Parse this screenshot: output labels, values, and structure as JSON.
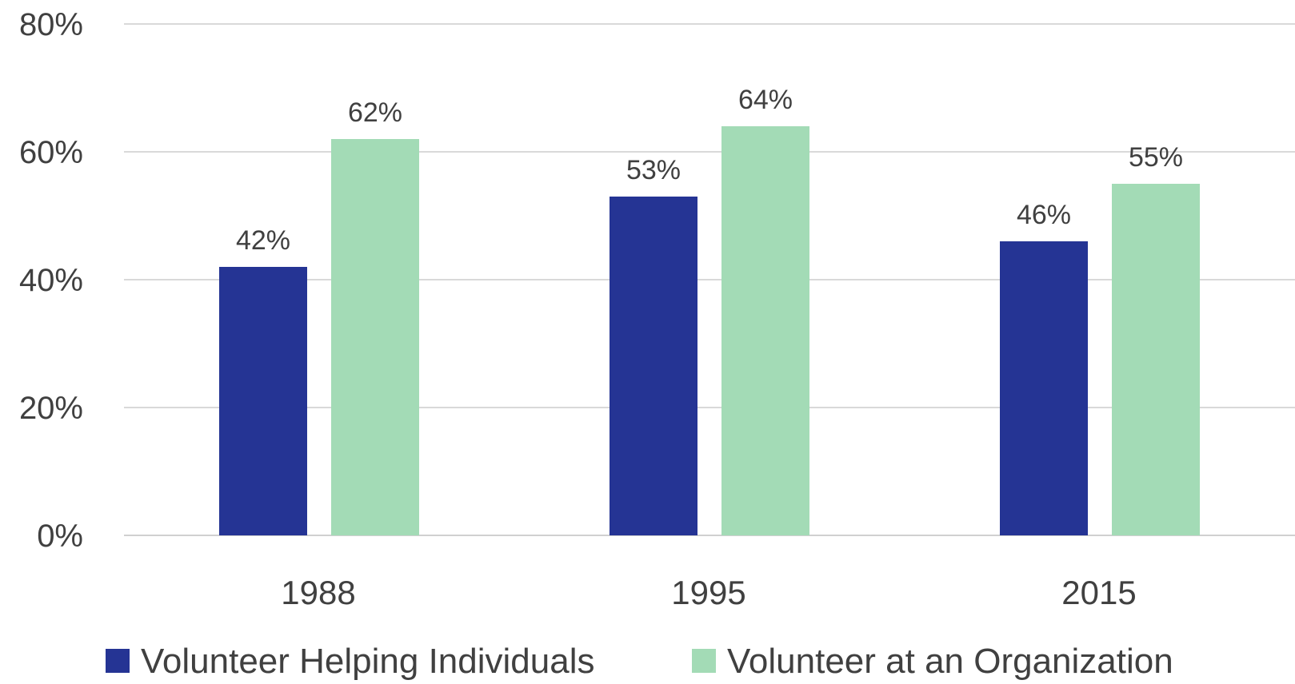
{
  "chart_data": {
    "type": "bar",
    "categories": [
      "1988",
      "1995",
      "2015"
    ],
    "series": [
      {
        "name": "Volunteer Helping Individuals",
        "values": [
          42,
          53,
          46
        ],
        "labels": [
          "42%",
          "53%",
          "46%"
        ],
        "color": "#253494"
      },
      {
        "name": "Volunteer at an Organization",
        "values": [
          62,
          64,
          55
        ],
        "labels": [
          "62%",
          "64%",
          "55%"
        ],
        "color": "#a3dbb6"
      }
    ],
    "ylim": [
      0,
      80
    ],
    "yticks": [
      {
        "value": 0,
        "label": "0%"
      },
      {
        "value": 20,
        "label": "20%"
      },
      {
        "value": 40,
        "label": "40%"
      },
      {
        "value": 60,
        "label": "60%"
      },
      {
        "value": 80,
        "label": "80%"
      }
    ],
    "grid": true,
    "legend_position": "bottom",
    "title": "",
    "xlabel": "",
    "ylabel": ""
  }
}
